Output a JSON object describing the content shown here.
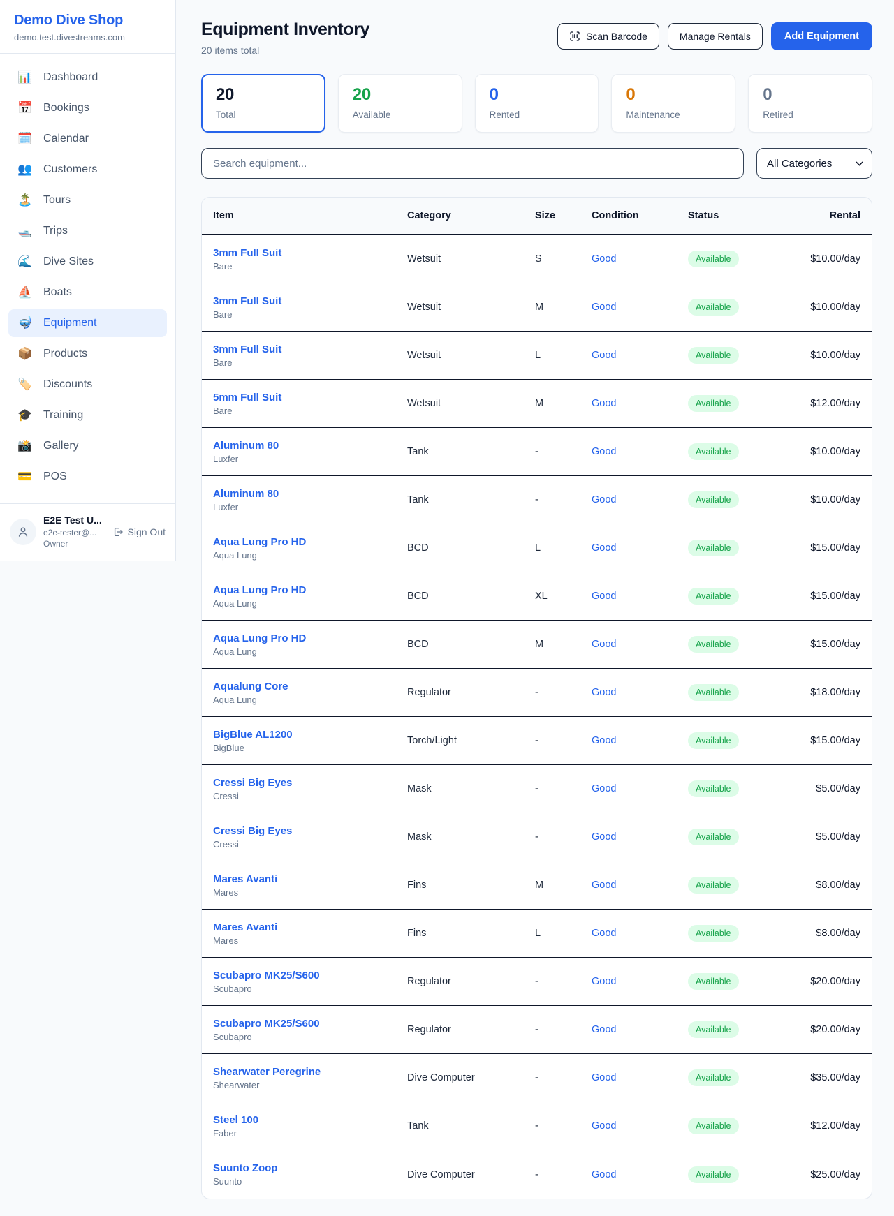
{
  "sidebar": {
    "brand": "Demo Dive Shop",
    "domain": "demo.test.divestreams.com",
    "items": [
      {
        "label": "Dashboard",
        "glyph": "📊",
        "icon_name": "bar-chart-icon",
        "active": false
      },
      {
        "label": "Bookings",
        "glyph": "📅",
        "icon_name": "calendar-icon",
        "active": false
      },
      {
        "label": "Calendar",
        "glyph": "🗓️",
        "icon_name": "spiral-calendar-icon",
        "active": false
      },
      {
        "label": "Customers",
        "glyph": "👥",
        "icon_name": "people-icon",
        "active": false
      },
      {
        "label": "Tours",
        "glyph": "🏝️",
        "icon_name": "palm-island-icon",
        "active": false
      },
      {
        "label": "Trips",
        "glyph": "🛥️",
        "icon_name": "motorboat-icon",
        "active": false
      },
      {
        "label": "Dive Sites",
        "glyph": "🌊",
        "icon_name": "wave-icon",
        "active": false
      },
      {
        "label": "Boats",
        "glyph": "⛵",
        "icon_name": "sailboat-icon",
        "active": false
      },
      {
        "label": "Equipment",
        "glyph": "🤿",
        "icon_name": "diving-mask-icon",
        "active": true
      },
      {
        "label": "Products",
        "glyph": "📦",
        "icon_name": "package-icon",
        "active": false
      },
      {
        "label": "Discounts",
        "glyph": "🏷️",
        "icon_name": "label-tag-icon",
        "active": false
      },
      {
        "label": "Training",
        "glyph": "🎓",
        "icon_name": "graduation-cap-icon",
        "active": false
      },
      {
        "label": "Gallery",
        "glyph": "📸",
        "icon_name": "camera-flash-icon",
        "active": false
      },
      {
        "label": "POS",
        "glyph": "💳",
        "icon_name": "credit-card-icon",
        "active": false
      }
    ],
    "user": {
      "name": "E2E Test U...",
      "email": "e2e-tester@...",
      "role": "Owner",
      "sign_out": "Sign Out"
    }
  },
  "header": {
    "title": "Equipment Inventory",
    "subtitle": "20 items total",
    "scan_barcode": "Scan Barcode",
    "manage_rentals": "Manage Rentals",
    "add_equipment": "Add Equipment"
  },
  "stats": [
    {
      "value": "20",
      "label": "Total",
      "color": "#0f172a",
      "selected": true
    },
    {
      "value": "20",
      "label": "Available",
      "color": "#16a34a",
      "selected": false
    },
    {
      "value": "0",
      "label": "Rented",
      "color": "#2563eb",
      "selected": false
    },
    {
      "value": "0",
      "label": "Maintenance",
      "color": "#d97706",
      "selected": false
    },
    {
      "value": "0",
      "label": "Retired",
      "color": "#64748b",
      "selected": false
    }
  ],
  "filters": {
    "search_placeholder": "Search equipment...",
    "category_selected": "All Categories"
  },
  "table": {
    "columns": [
      "Item",
      "Category",
      "Size",
      "Condition",
      "Status",
      "Rental"
    ],
    "rows": [
      {
        "name": "3mm Full Suit",
        "brand": "Bare",
        "category": "Wetsuit",
        "size": "S",
        "condition": "Good",
        "status": "Available",
        "rental": "$10.00/day"
      },
      {
        "name": "3mm Full Suit",
        "brand": "Bare",
        "category": "Wetsuit",
        "size": "M",
        "condition": "Good",
        "status": "Available",
        "rental": "$10.00/day"
      },
      {
        "name": "3mm Full Suit",
        "brand": "Bare",
        "category": "Wetsuit",
        "size": "L",
        "condition": "Good",
        "status": "Available",
        "rental": "$10.00/day"
      },
      {
        "name": "5mm Full Suit",
        "brand": "Bare",
        "category": "Wetsuit",
        "size": "M",
        "condition": "Good",
        "status": "Available",
        "rental": "$12.00/day"
      },
      {
        "name": "Aluminum 80",
        "brand": "Luxfer",
        "category": "Tank",
        "size": "-",
        "condition": "Good",
        "status": "Available",
        "rental": "$10.00/day"
      },
      {
        "name": "Aluminum 80",
        "brand": "Luxfer",
        "category": "Tank",
        "size": "-",
        "condition": "Good",
        "status": "Available",
        "rental": "$10.00/day"
      },
      {
        "name": "Aqua Lung Pro HD",
        "brand": "Aqua Lung",
        "category": "BCD",
        "size": "L",
        "condition": "Good",
        "status": "Available",
        "rental": "$15.00/day"
      },
      {
        "name": "Aqua Lung Pro HD",
        "brand": "Aqua Lung",
        "category": "BCD",
        "size": "XL",
        "condition": "Good",
        "status": "Available",
        "rental": "$15.00/day"
      },
      {
        "name": "Aqua Lung Pro HD",
        "brand": "Aqua Lung",
        "category": "BCD",
        "size": "M",
        "condition": "Good",
        "status": "Available",
        "rental": "$15.00/day"
      },
      {
        "name": "Aqualung Core",
        "brand": "Aqua Lung",
        "category": "Regulator",
        "size": "-",
        "condition": "Good",
        "status": "Available",
        "rental": "$18.00/day"
      },
      {
        "name": "BigBlue AL1200",
        "brand": "BigBlue",
        "category": "Torch/Light",
        "size": "-",
        "condition": "Good",
        "status": "Available",
        "rental": "$15.00/day"
      },
      {
        "name": "Cressi Big Eyes",
        "brand": "Cressi",
        "category": "Mask",
        "size": "-",
        "condition": "Good",
        "status": "Available",
        "rental": "$5.00/day"
      },
      {
        "name": "Cressi Big Eyes",
        "brand": "Cressi",
        "category": "Mask",
        "size": "-",
        "condition": "Good",
        "status": "Available",
        "rental": "$5.00/day"
      },
      {
        "name": "Mares Avanti",
        "brand": "Mares",
        "category": "Fins",
        "size": "M",
        "condition": "Good",
        "status": "Available",
        "rental": "$8.00/day"
      },
      {
        "name": "Mares Avanti",
        "brand": "Mares",
        "category": "Fins",
        "size": "L",
        "condition": "Good",
        "status": "Available",
        "rental": "$8.00/day"
      },
      {
        "name": "Scubapro MK25/S600",
        "brand": "Scubapro",
        "category": "Regulator",
        "size": "-",
        "condition": "Good",
        "status": "Available",
        "rental": "$20.00/day"
      },
      {
        "name": "Scubapro MK25/S600",
        "brand": "Scubapro",
        "category": "Regulator",
        "size": "-",
        "condition": "Good",
        "status": "Available",
        "rental": "$20.00/day"
      },
      {
        "name": "Shearwater Peregrine",
        "brand": "Shearwater",
        "category": "Dive Computer",
        "size": "-",
        "condition": "Good",
        "status": "Available",
        "rental": "$35.00/day"
      },
      {
        "name": "Steel 100",
        "brand": "Faber",
        "category": "Tank",
        "size": "-",
        "condition": "Good",
        "status": "Available",
        "rental": "$12.00/day"
      },
      {
        "name": "Suunto Zoop",
        "brand": "Suunto",
        "category": "Dive Computer",
        "size": "-",
        "condition": "Good",
        "status": "Available",
        "rental": "$25.00/day"
      }
    ]
  },
  "colors": {
    "accent_blue": "#2563eb",
    "status_green": "#16a34a",
    "badge_bg": "#dcfce7",
    "maintenance_orange": "#d97706"
  }
}
